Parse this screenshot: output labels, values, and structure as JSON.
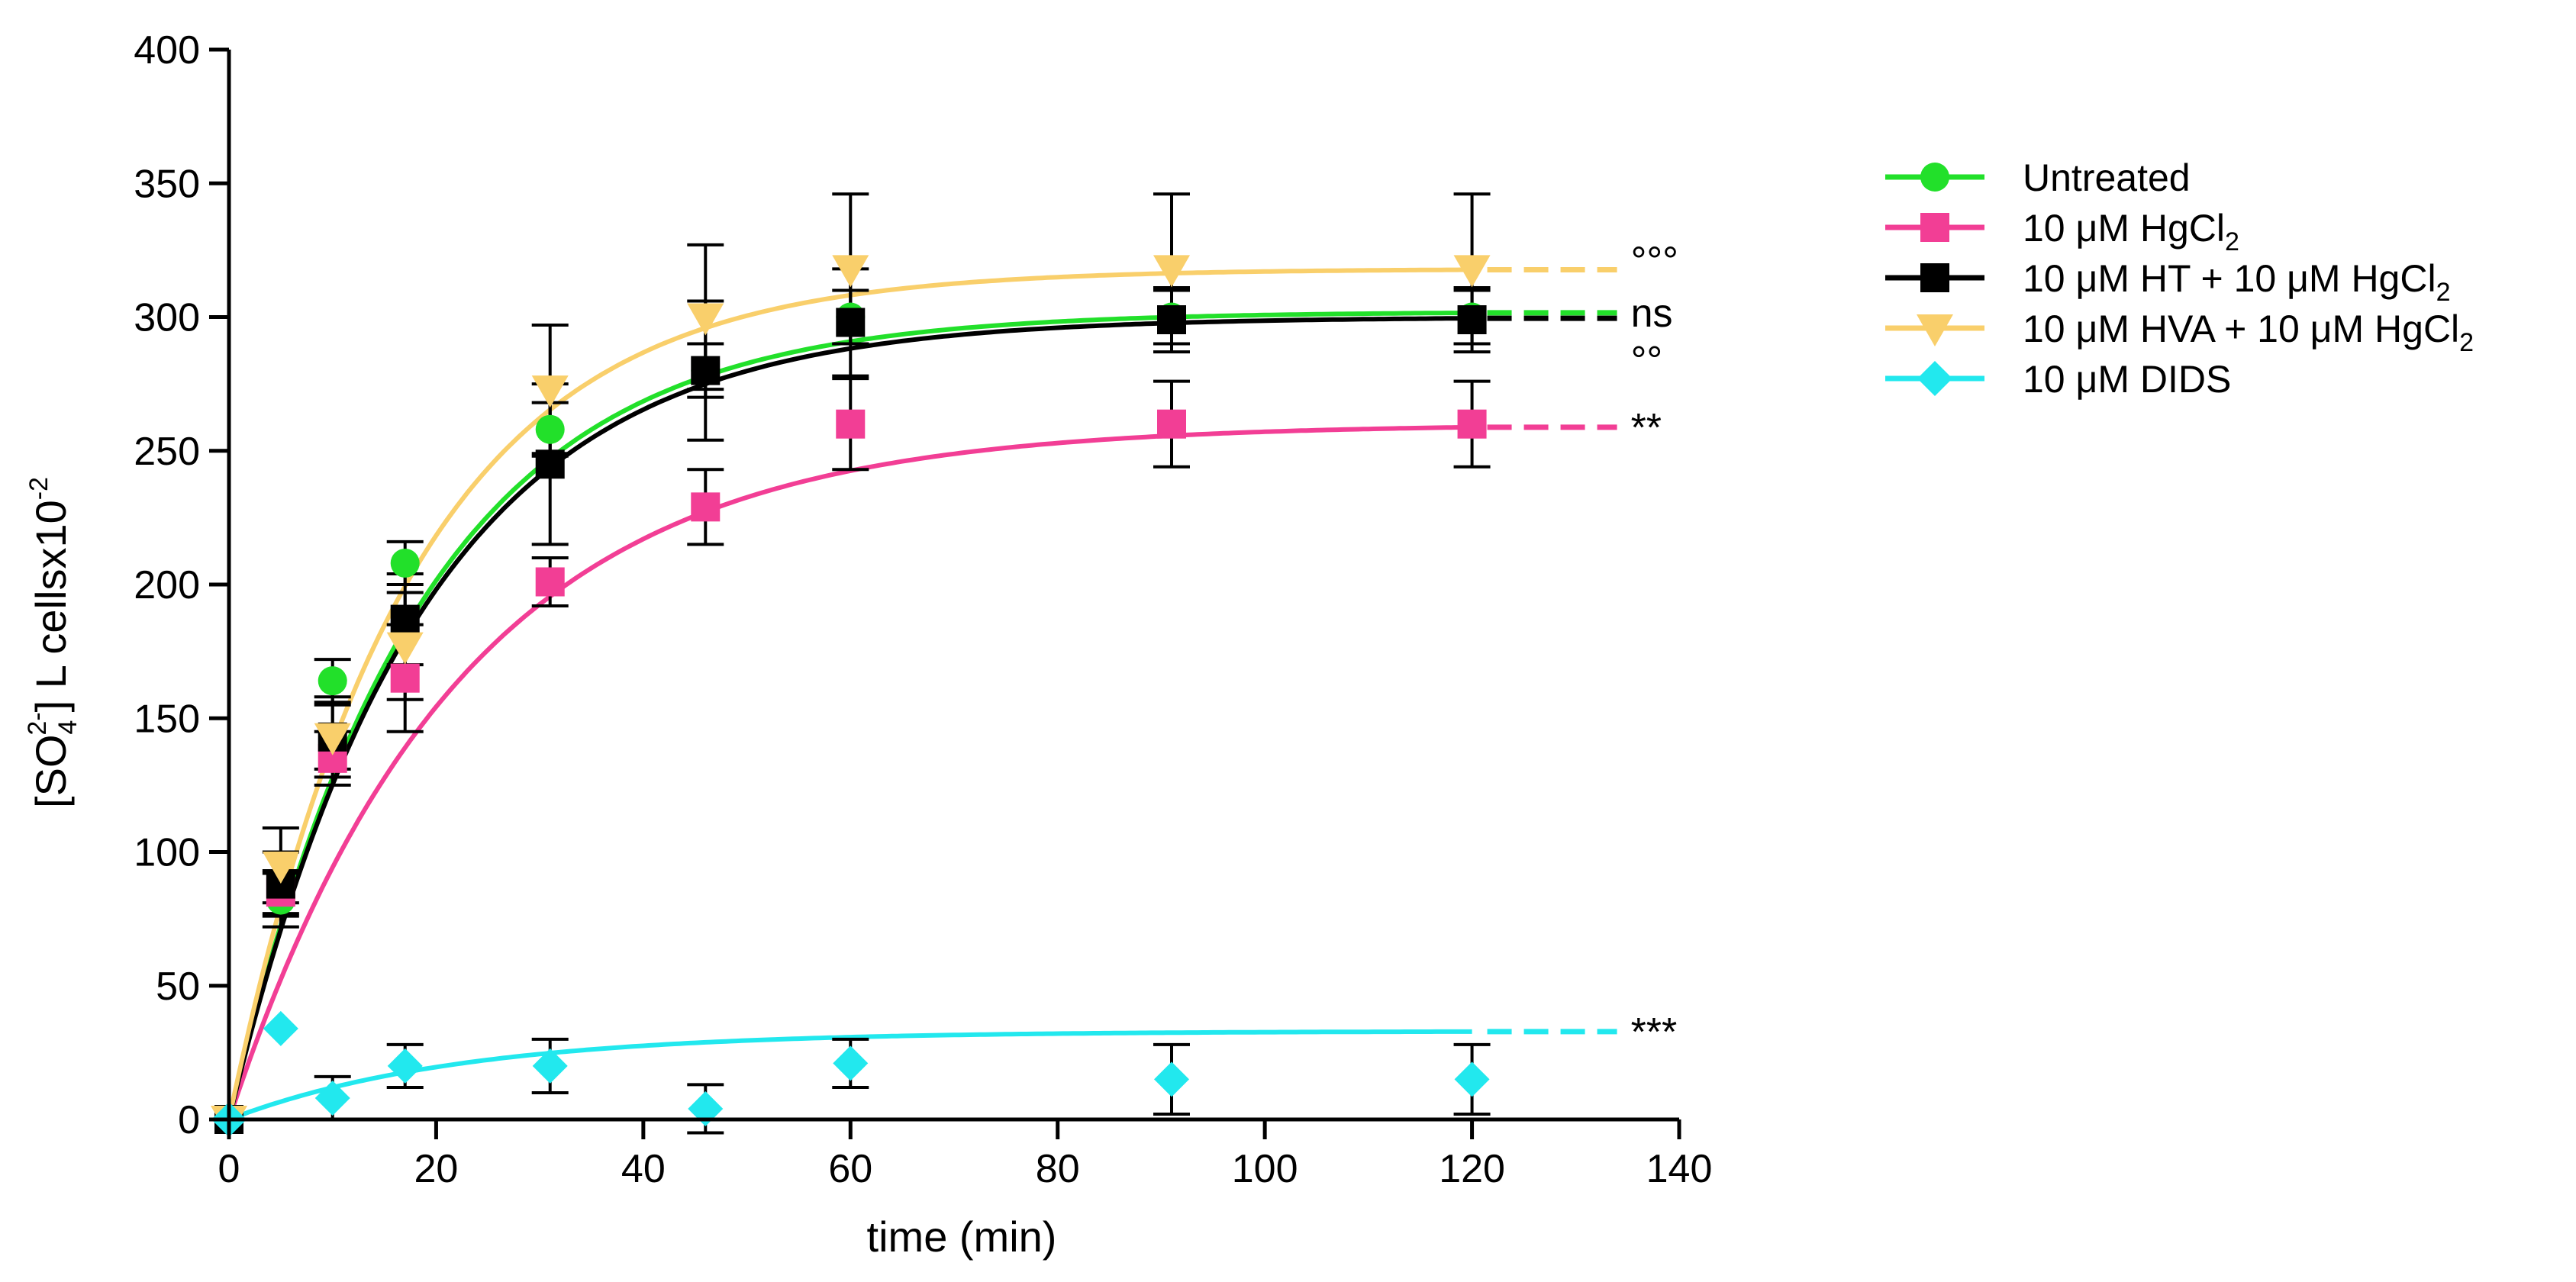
{
  "chart_data": {
    "type": "scatter",
    "title": "",
    "xlabel": "time (min)",
    "ylabel": "[SO4 2-] L cellsx10-2",
    "ylabel_parts": {
      "open": "[SO",
      "sub": "4",
      "sup": "2-",
      "close": "] L cellsx10",
      "exp": "-2"
    },
    "xlim": [
      0,
      140
    ],
    "ylim": [
      0,
      400
    ],
    "xticks": [
      "0",
      "20",
      "40",
      "60",
      "80",
      "100",
      "120",
      "140"
    ],
    "xtick_values": [
      0,
      20,
      40,
      60,
      80,
      100,
      120,
      140
    ],
    "yticks": [
      "0",
      "50",
      "100",
      "150",
      "200",
      "250",
      "300",
      "350",
      "400"
    ],
    "ytick_values": [
      0,
      50,
      100,
      150,
      200,
      250,
      300,
      350,
      400
    ],
    "grid": false,
    "legend_position": "right",
    "x": [
      0,
      5,
      10,
      17,
      31,
      46,
      60,
      91,
      120
    ],
    "series": [
      {
        "name": "Untreated",
        "legend": {
          "pre": "Untreated",
          "sub": "",
          "post": "",
          "sub2": ""
        },
        "color": "#22e02a",
        "marker": "circle",
        "values": [
          0,
          82,
          164,
          208,
          258,
          280,
          300,
          300,
          300
        ],
        "errors": [
          0,
          10,
          8,
          8,
          10,
          10,
          10,
          10,
          10
        ],
        "fit": {
          "plateau": 302,
          "k": 0.055,
          "extend_to": 134
        },
        "significance": "ns"
      },
      {
        "name": "10 μM HgCl2",
        "legend": {
          "pre": "10 μM HgCl",
          "sub": "2",
          "post": "",
          "sub2": ""
        },
        "color": "#f23e95",
        "marker": "square",
        "values": [
          0,
          85,
          135,
          165,
          201,
          229,
          260,
          260,
          260
        ],
        "errors": [
          0,
          8,
          10,
          20,
          9,
          14,
          17,
          16,
          16
        ],
        "fit": {
          "plateau": 260,
          "k": 0.045,
          "extend_to": 134
        },
        "significance": "**"
      },
      {
        "name": "10 μM HT + 10 μM HgCl2",
        "legend": {
          "pre": "10 μM HT + 10 μM HgCl",
          "sub": "2",
          "post": "",
          "sub2": ""
        },
        "color": "#000000",
        "marker": "square",
        "values": [
          0,
          88,
          143,
          187,
          245,
          280,
          298,
          299,
          299
        ],
        "errors": [
          0,
          12,
          15,
          17,
          30,
          26,
          20,
          12,
          12
        ],
        "fit": {
          "plateau": 300,
          "k": 0.054,
          "extend_to": 134
        },
        "significance": "°°"
      },
      {
        "name": "10 μM HVA + 10 μM HgCl2",
        "legend": {
          "pre": "10 μM HVA + 10 μM HgCl",
          "sub": "2",
          "post": "",
          "sub2": ""
        },
        "color": "#f9cf6b",
        "marker": "triangle-down",
        "values": [
          0,
          95,
          143,
          177,
          273,
          300,
          318,
          318,
          318
        ],
        "errors": [
          0,
          14,
          12,
          20,
          24,
          27,
          28,
          28,
          28
        ],
        "fit": {
          "plateau": 318,
          "k": 0.058,
          "extend_to": 134
        },
        "significance": "°°°"
      },
      {
        "name": "10 μM DIDS",
        "legend": {
          "pre": "10 μM DIDS",
          "sub": "",
          "post": "",
          "sub2": ""
        },
        "color": "#22e8ee",
        "marker": "diamond",
        "values": [
          0,
          34,
          8,
          20,
          20,
          4,
          21,
          15,
          15
        ],
        "errors": [
          0,
          0,
          8,
          8,
          10,
          9,
          9,
          13,
          13
        ],
        "fit": {
          "plateau": 33,
          "k": 0.045,
          "extend_to": 134
        },
        "significance": "***"
      }
    ]
  }
}
